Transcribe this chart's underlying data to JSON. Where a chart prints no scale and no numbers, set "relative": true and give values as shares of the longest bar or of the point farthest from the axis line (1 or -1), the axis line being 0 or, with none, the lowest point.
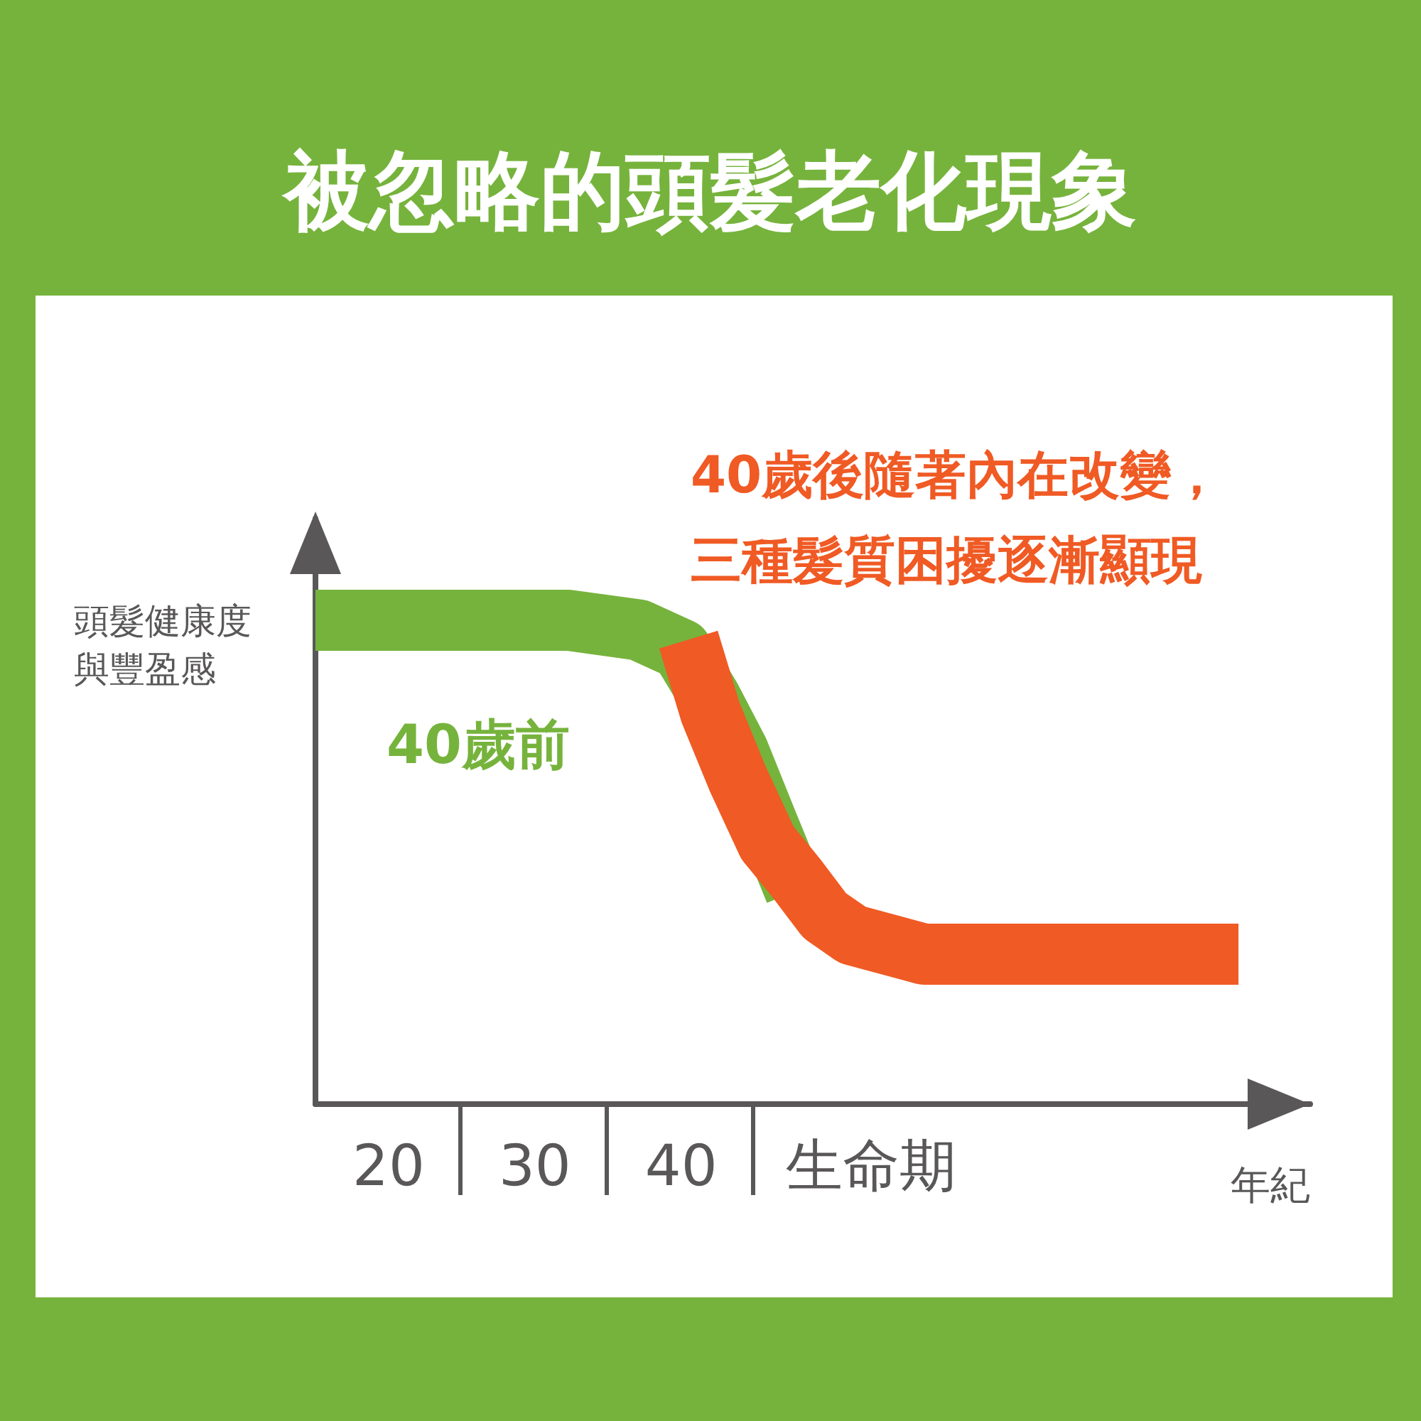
{
  "chart_data": {
    "type": "line",
    "title": "被忽略的頭髮老化現象",
    "ylabel": "頭髮健康度與豐盈感",
    "xlabel": "年紀",
    "relative": true,
    "legend": false,
    "grid": false,
    "marker": "none",
    "xlim": [
      15,
      83
    ],
    "xticks": [
      20,
      30,
      40,
      {
        "value": 53,
        "label": "生命期"
      }
    ],
    "series": [
      {
        "name": "40歲前",
        "color": "#76b33c",
        "x": [
          15,
          32.3,
          37.1,
          40,
          42,
          43.9,
          45.9,
          47.8
        ],
        "values": [
          1,
          1,
          0.98,
          0.94,
          0.84,
          0.73,
          0.58,
          0.44
        ]
      },
      {
        "name": "40歲後隨著內在改變，三種髮質困擾逐漸顯現",
        "color": "#f05a24",
        "x": [
          40.5,
          42,
          43.9,
          45.9,
          47.8,
          49.8,
          51.7,
          56.6,
          78.1
        ],
        "values": [
          0.96,
          0.81,
          0.67,
          0.54,
          0.47,
          0.39,
          0.35,
          0.31,
          0.31
        ]
      }
    ]
  }
}
